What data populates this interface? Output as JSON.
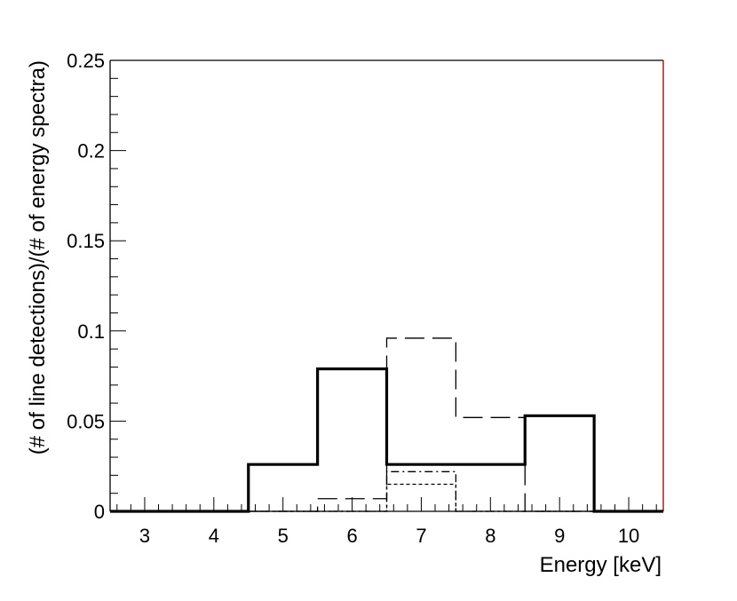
{
  "chart_data": {
    "type": "line",
    "title": "",
    "xlabel": "Energy [keV]",
    "ylabel": "(# of line detections)/(# of energy spectra)",
    "xlim": [
      2.5,
      10.5
    ],
    "ylim": [
      0,
      0.25
    ],
    "x_ticks": [
      "3",
      "4",
      "5",
      "6",
      "7",
      "8",
      "9",
      "10"
    ],
    "y_ticks": [
      "0",
      "0.05",
      "0.1",
      "0.15",
      "0.2",
      "0.25"
    ],
    "x_tick_values": [
      3,
      4,
      5,
      6,
      7,
      8,
      9,
      10
    ],
    "y_tick_values": [
      0,
      0.05,
      0.1,
      0.15,
      0.2,
      0.25
    ],
    "grid": false,
    "step_histogram": true,
    "bin_edges": [
      2.5,
      3.5,
      4.5,
      5.5,
      6.5,
      7.5,
      8.5,
      9.5,
      10.5
    ],
    "series": [
      {
        "style": "solid-thick",
        "values": [
          0,
          0,
          0.026,
          0.079,
          0.026,
          0.026,
          0.053,
          0
        ]
      },
      {
        "style": "long-dash",
        "values": [
          0,
          0,
          0,
          0.007,
          0.096,
          0.052,
          0,
          0
        ]
      },
      {
        "style": "dash-dot",
        "values": [
          0,
          0,
          0,
          0,
          0.022,
          0,
          0,
          0
        ]
      },
      {
        "style": "dotted",
        "values": [
          0,
          0,
          0,
          0,
          0.015,
          0,
          0,
          0
        ]
      }
    ],
    "colors": {
      "axis": "#000000",
      "right_border": "#8b0000",
      "baseline": "#8b0000"
    }
  }
}
